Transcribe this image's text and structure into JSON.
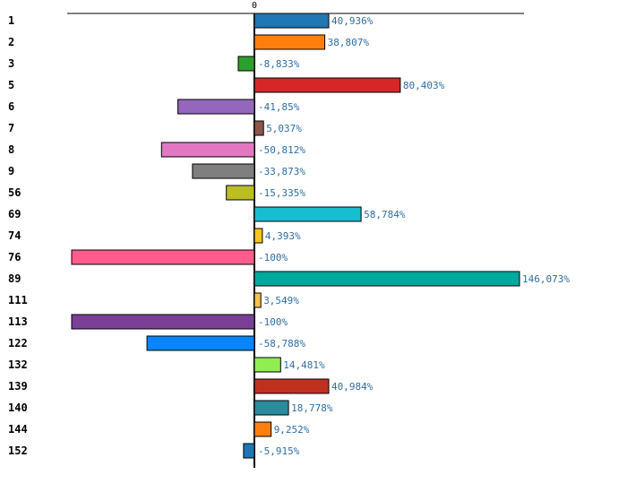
{
  "chart_data": {
    "type": "bar",
    "orientation": "horizontal",
    "title": "",
    "xlabel": "",
    "ylabel": "",
    "xlim": [
      -100,
      146.073
    ],
    "zero_tick_label": "0",
    "grid": false,
    "value_suffix": "%",
    "categories": [
      "1",
      "2",
      "3",
      "5",
      "6",
      "7",
      "8",
      "9",
      "56",
      "69",
      "74",
      "76",
      "89",
      "111",
      "113",
      "122",
      "132",
      "139",
      "140",
      "144",
      "152"
    ],
    "values": [
      40.936,
      38.807,
      -8.833,
      80.403,
      -41.85,
      5.037,
      -50.812,
      -33.873,
      -15.335,
      58.784,
      4.393,
      -100,
      146.073,
      3.549,
      -100,
      -58.788,
      14.481,
      40.984,
      18.778,
      9.252,
      -5.915
    ],
    "value_labels": [
      "40,936%",
      "38,807%",
      "-8,833%",
      "80,403%",
      "-41,85%",
      "5,037%",
      "-50,812%",
      "-33,873%",
      "-15,335%",
      "58,784%",
      "4,393%",
      "-100%",
      "146,073%",
      "3,549%",
      "-100%",
      "-58,788%",
      "14,481%",
      "40,984%",
      "18,778%",
      "9,252%",
      "-5,915%"
    ],
    "colors": [
      "#1f77b4",
      "#ff7f0e",
      "#2ca02c",
      "#d62728",
      "#9467bd",
      "#8c564b",
      "#e377c2",
      "#7f7f7f",
      "#bcbd22",
      "#17becf",
      "#f5c518",
      "#ff5c8d",
      "#00a99d",
      "#f7c04a",
      "#7b3f98",
      "#0a84ff",
      "#90ee50",
      "#c0301f",
      "#2a8c9c",
      "#ff7f0e",
      "#1f77b4"
    ]
  }
}
